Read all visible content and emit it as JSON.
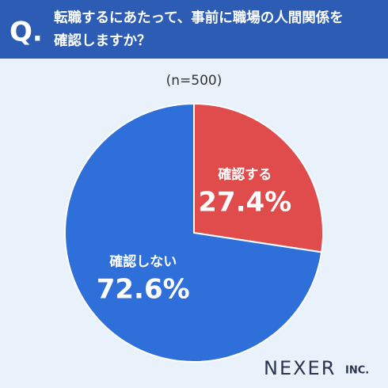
{
  "header": {
    "mark": "Q.",
    "title_lines": [
      "転職するにあたって、事前に職場の人間関係を",
      "確認しますか？"
    ]
  },
  "chart_data": {
    "type": "pie",
    "subtitle": "(n=500)",
    "categories": [
      "確認する",
      "確認しない"
    ],
    "values": [
      27.4,
      72.6
    ],
    "value_labels": [
      "27.4%",
      "72.6%"
    ],
    "colors": [
      "#e04b4b",
      "#2f6fd9"
    ]
  },
  "brand": {
    "name": "NEXER",
    "suffix": "INC."
  }
}
